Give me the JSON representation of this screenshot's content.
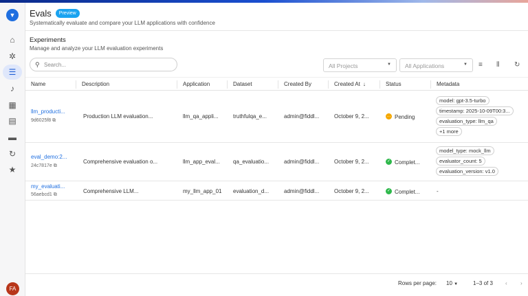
{
  "header": {
    "title": "Evals",
    "badge": "Preview",
    "subtitle": "Systematically evaluate and compare your LLM applications with confidence"
  },
  "section": {
    "title": "Experiments",
    "subtitle": "Manage and analyze your LLM evaluation experiments"
  },
  "search": {
    "placeholder": "Search..."
  },
  "filters": {
    "projects": "All Projects",
    "applications": "All Applications"
  },
  "columns": [
    "Name",
    "Description",
    "Application",
    "Dataset",
    "Created By",
    "Created At",
    "Status",
    "Metadata"
  ],
  "sort_indicator": "↓",
  "rows": [
    {
      "name": "llm_producti...",
      "hash": "9d6025f8",
      "description": "Production LLM evaluation...",
      "application": "llm_qa_appli...",
      "dataset": "truthfulqa_e...",
      "created_by": "admin@fiddl...",
      "created_at": "October 9, 2...",
      "status": "Pending",
      "status_color": "#f5a800",
      "metadata": [
        "model: gpt-3.5-turbo",
        "timestamp: 2025-10-09T00:3...",
        "evaluation_type: llm_qa",
        "+1 more"
      ]
    },
    {
      "name": "eval_demo:2...",
      "hash": "24c7817e",
      "description": "Comprehensive evaluation o...",
      "application": "llm_app_eval...",
      "dataset": "qa_evaluatio...",
      "created_by": "admin@fiddl...",
      "created_at": "October 9, 2...",
      "status": "Complet...",
      "status_color": "#2eb84b",
      "metadata": [
        "model_type: mock_llm",
        "evaluator_count: 5",
        "evaluation_version: v1.0"
      ]
    },
    {
      "name": "my_evaluati...",
      "hash": "56aebcd1",
      "description": "Comprehensive LLM...",
      "application": "my_llm_app_01",
      "dataset": "evaluation_d...",
      "created_by": "admin@fiddl...",
      "created_at": "October 9, 2...",
      "status": "Complet...",
      "status_color": "#2eb84b",
      "metadata_empty": "-"
    }
  ],
  "footer": {
    "rows_per_page_label": "Rows per page:",
    "rows_per_page": "10",
    "range": "1–3 of 3"
  },
  "user": {
    "initials": "FA"
  }
}
